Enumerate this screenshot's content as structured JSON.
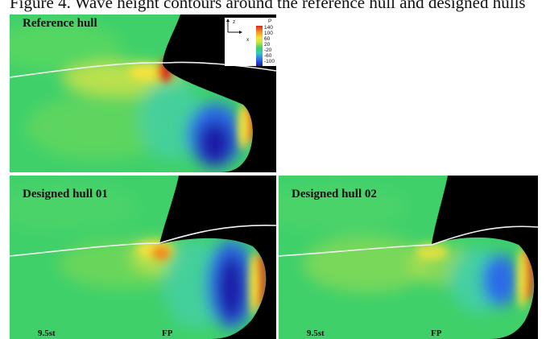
{
  "figure": {
    "caption": "Figure 4.    Wave height contours around the reference hull and designed hulls",
    "panels": [
      {
        "label": "Reference hull"
      },
      {
        "label": "Designed hull 01",
        "station_label": "9.5st",
        "fp_label": "FP"
      },
      {
        "label": "Designed hull 02",
        "station_label": "9.5st",
        "fp_label": "FP"
      }
    ],
    "legend": {
      "variable": "P",
      "ticks": [
        "140",
        "100",
        "60",
        "20",
        "-20",
        "-60",
        "-100"
      ],
      "axes_icon": "z-x-axes-icon",
      "axis_labels": {
        "vertical": "z",
        "horizontal": "x"
      }
    },
    "colors": {
      "background": "#000000",
      "field_base": "#3fd06a",
      "high_pressure": "#d7261e",
      "low_pressure": "#1c1aa8",
      "waterline": "#f2f2f2"
    }
  }
}
